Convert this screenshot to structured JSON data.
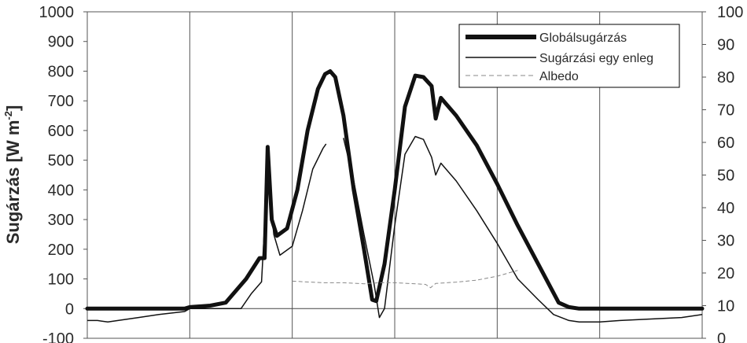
{
  "chart_data": {
    "type": "line",
    "ylabel_parts": {
      "main": "Sugárzás [W m",
      "sup": "-2",
      "close": "]"
    },
    "ylim": [
      -100,
      1000
    ],
    "y_ticks": [
      "1000",
      "900",
      "800",
      "700",
      "600",
      "500",
      "400",
      "300",
      "200",
      "100",
      "0",
      "-100"
    ],
    "y2lim": [
      0,
      100
    ],
    "y2_ticks": [
      "100",
      "90",
      "80",
      "70",
      "60",
      "50",
      "40",
      "30",
      "20",
      "10",
      "0"
    ],
    "x_range": [
      0,
      6
    ],
    "x_gridlines": [
      1,
      2,
      3,
      4,
      5
    ],
    "grid": true,
    "legend_position": "top-right",
    "series": [
      {
        "name": "Globálsugárzás",
        "axis": "left",
        "style": "thick",
        "points": [
          [
            0,
            0
          ],
          [
            0.95,
            0
          ],
          [
            1.0,
            5
          ],
          [
            1.2,
            10
          ],
          [
            1.35,
            20
          ],
          [
            1.55,
            100
          ],
          [
            1.68,
            170
          ],
          [
            1.73,
            170
          ],
          [
            1.76,
            545
          ],
          [
            1.8,
            300
          ],
          [
            1.85,
            245
          ],
          [
            1.95,
            270
          ],
          [
            2.05,
            400
          ],
          [
            2.15,
            600
          ],
          [
            2.25,
            740
          ],
          [
            2.32,
            790
          ],
          [
            2.37,
            800
          ],
          [
            2.42,
            780
          ],
          [
            2.5,
            650
          ],
          [
            2.6,
            400
          ],
          [
            2.7,
            200
          ],
          [
            2.78,
            30
          ],
          [
            2.82,
            25
          ],
          [
            2.9,
            150
          ],
          [
            3.0,
            400
          ],
          [
            3.1,
            680
          ],
          [
            3.2,
            785
          ],
          [
            3.28,
            780
          ],
          [
            3.36,
            750
          ],
          [
            3.4,
            640
          ],
          [
            3.45,
            710
          ],
          [
            3.6,
            650
          ],
          [
            3.8,
            550
          ],
          [
            4.0,
            420
          ],
          [
            4.2,
            280
          ],
          [
            4.4,
            150
          ],
          [
            4.6,
            20
          ],
          [
            4.7,
            5
          ],
          [
            4.8,
            0
          ],
          [
            6,
            0
          ]
        ]
      },
      {
        "name": "Sugárzási egy enleg",
        "axis": "left",
        "style": "thin",
        "segments": [
          [
            [
              0,
              -40
            ],
            [
              0.1,
              -40
            ],
            [
              0.2,
              -45
            ],
            [
              0.3,
              -40
            ],
            [
              0.5,
              -30
            ],
            [
              0.7,
              -20
            ],
            [
              0.95,
              -10
            ],
            [
              1.0,
              0
            ],
            [
              1.5,
              0
            ],
            [
              1.6,
              50
            ],
            [
              1.7,
              90
            ],
            [
              1.76,
              470
            ],
            [
              1.82,
              250
            ],
            [
              1.88,
              180
            ],
            [
              2.0,
              210
            ],
            [
              2.1,
              330
            ],
            [
              2.2,
              470
            ],
            [
              2.3,
              540
            ],
            [
              2.33,
              555
            ]
          ],
          [
            [
              2.5,
              575
            ],
            [
              2.6,
              430
            ],
            [
              2.7,
              250
            ],
            [
              2.8,
              80
            ],
            [
              2.85,
              -30
            ],
            [
              2.9,
              0
            ],
            [
              3.0,
              280
            ],
            [
              3.1,
              520
            ],
            [
              3.2,
              580
            ],
            [
              3.28,
              570
            ],
            [
              3.36,
              510
            ],
            [
              3.4,
              450
            ],
            [
              3.45,
              490
            ],
            [
              3.6,
              430
            ],
            [
              3.8,
              330
            ],
            [
              4.0,
              220
            ],
            [
              4.2,
              100
            ],
            [
              4.4,
              30
            ],
            [
              4.55,
              -20
            ],
            [
              4.7,
              -40
            ],
            [
              4.8,
              -45
            ],
            [
              5.0,
              -45
            ],
            [
              5.2,
              -40
            ],
            [
              5.5,
              -35
            ],
            [
              5.8,
              -30
            ],
            [
              6,
              -20
            ]
          ]
        ]
      },
      {
        "name": "Albedo",
        "axis": "right",
        "style": "dashed",
        "points": [
          [
            2.0,
            17.5
          ],
          [
            2.3,
            17.0
          ],
          [
            2.5,
            17.0
          ],
          [
            2.7,
            16.7
          ],
          [
            2.85,
            17.0
          ],
          [
            3.0,
            17.0
          ],
          [
            3.2,
            16.7
          ],
          [
            3.3,
            16.5
          ],
          [
            3.35,
            15.5
          ],
          [
            3.4,
            16.8
          ],
          [
            3.6,
            17.2
          ],
          [
            3.8,
            17.8
          ],
          [
            4.0,
            19.0
          ],
          [
            4.2,
            20.8
          ]
        ]
      }
    ]
  }
}
